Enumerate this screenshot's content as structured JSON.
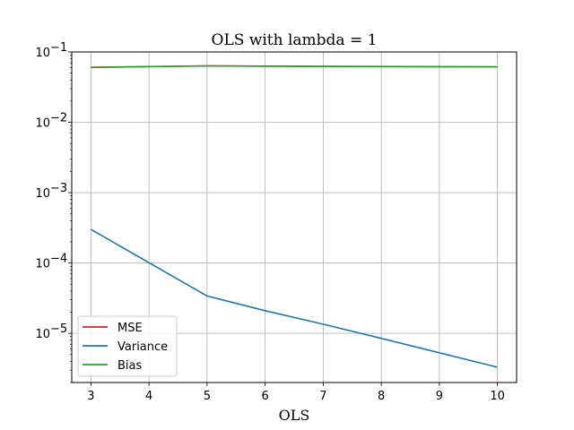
{
  "chart_data": {
    "type": "line",
    "title": "OLS with lambda = 1",
    "xlabel": "OLS",
    "ylabel": "",
    "yscale": "log",
    "xlim": [
      2.67,
      10.33
    ],
    "ylim": [
      2e-06,
      0.1
    ],
    "grid": true,
    "legend_position": "lower-left",
    "x": [
      3,
      5,
      6,
      7,
      8,
      9,
      10
    ],
    "xticks": [
      3,
      4,
      5,
      6,
      7,
      8,
      9,
      10
    ],
    "xtick_labels": [
      "3",
      "4",
      "5",
      "6",
      "7",
      "8",
      "9",
      "10"
    ],
    "yticks": [
      1e-05,
      0.0001,
      0.001,
      0.01,
      0.1
    ],
    "ytick_labels": [
      {
        "base": "10",
        "exp": "−5"
      },
      {
        "base": "10",
        "exp": "−4"
      },
      {
        "base": "10",
        "exp": "−3"
      },
      {
        "base": "10",
        "exp": "−2"
      },
      {
        "base": "10",
        "exp": "−1"
      }
    ],
    "series": [
      {
        "name": "MSE",
        "color": "#d62728",
        "values": [
          0.0605,
          0.0635,
          0.063,
          0.0625,
          0.0622,
          0.0618,
          0.0615
        ]
      },
      {
        "name": "Variance",
        "color": "#1f77b4",
        "values": [
          0.0003,
          3.4e-05,
          2.1e-05,
          1.35e-05,
          8.5e-06,
          5.3e-06,
          3.3e-06
        ]
      },
      {
        "name": "Bias",
        "color": "#2ca02c",
        "values": [
          0.0602,
          0.0632,
          0.0627,
          0.0622,
          0.0619,
          0.0615,
          0.0612
        ]
      }
    ]
  }
}
